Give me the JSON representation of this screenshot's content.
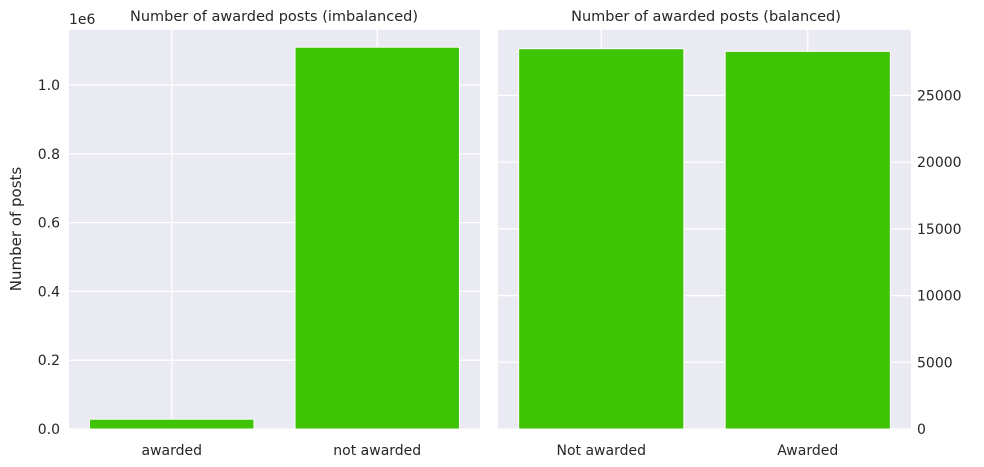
{
  "colors": {
    "background": "#eaeaf2",
    "bar": "#3ec405",
    "grid": "#ffffff",
    "text": "#262626"
  },
  "chart_data": [
    {
      "type": "bar",
      "title": "Number of awarded posts (imbalanced)",
      "xlabel": "",
      "ylabel": "Number of posts",
      "y_offset_label": "1e6",
      "categories": [
        "awarded",
        "not awarded"
      ],
      "values": [
        0.0285,
        1.11
      ],
      "ylim": [
        0,
        1.16
      ],
      "yticks": [
        0.0,
        0.2,
        0.4,
        0.6,
        0.8,
        1.0
      ],
      "ytick_labels": [
        "0.0",
        "0.2",
        "0.4",
        "0.6",
        "0.8",
        "1.0"
      ],
      "grid": true,
      "yaxis_side": "left"
    },
    {
      "type": "bar",
      "title": "Number of awarded posts (balanced)",
      "xlabel": "",
      "ylabel": "",
      "categories": [
        "Not awarded",
        "Awarded"
      ],
      "values": [
        28500,
        28300
      ],
      "ylim": [
        0,
        29900
      ],
      "yticks": [
        0,
        5000,
        10000,
        15000,
        20000,
        25000
      ],
      "ytick_labels": [
        "0",
        "5000",
        "10000",
        "15000",
        "20000",
        "25000"
      ],
      "grid": true,
      "yaxis_side": "right"
    }
  ]
}
